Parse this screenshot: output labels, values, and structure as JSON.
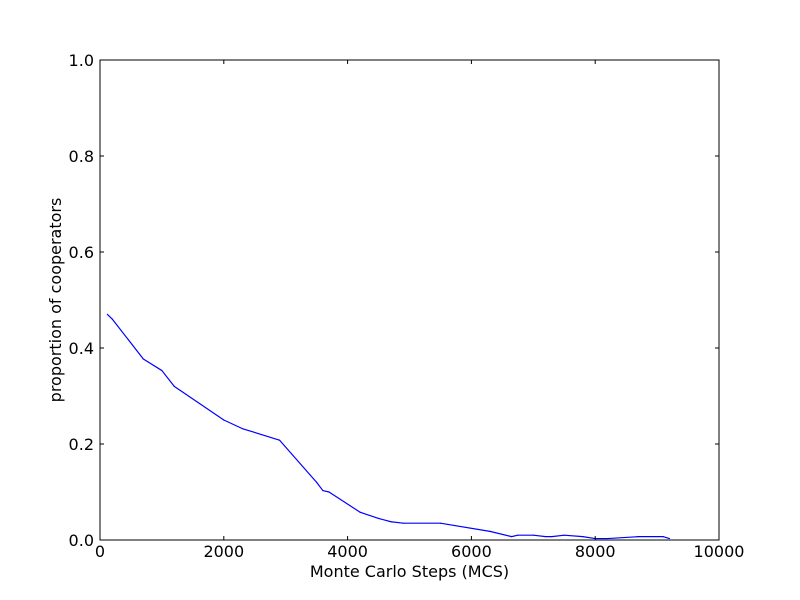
{
  "chart_data": {
    "type": "line",
    "title": "",
    "xlabel": "Monte Carlo Steps (MCS)",
    "ylabel": "proportion of cooperators",
    "xlim": [
      0,
      10000
    ],
    "ylim": [
      0.0,
      1.0
    ],
    "grid": false,
    "x_ticks": [
      0,
      2000,
      4000,
      6000,
      8000,
      10000
    ],
    "x_tick_labels": [
      "0",
      "2000",
      "4000",
      "6000",
      "8000",
      "10000"
    ],
    "y_ticks": [
      0.0,
      0.2,
      0.4,
      0.6,
      0.8,
      1.0
    ],
    "y_tick_labels": [
      "0.0",
      "0.2",
      "0.4",
      "0.6",
      "0.8",
      "1.0"
    ],
    "series": [
      {
        "color": "#0000ff",
        "x": [
          120,
          200,
          700,
          1000,
          1200,
          2000,
          2300,
          2900,
          3500,
          3600,
          3700,
          4200,
          4500,
          4700,
          4900,
          5500,
          6300,
          6650,
          6750,
          7000,
          7200,
          7300,
          7500,
          7800,
          8000,
          8200,
          8700,
          9100,
          9200
        ],
        "y": [
          0.47,
          0.46,
          0.377,
          0.353,
          0.32,
          0.25,
          0.232,
          0.208,
          0.12,
          0.103,
          0.1,
          0.058,
          0.045,
          0.038,
          0.035,
          0.035,
          0.018,
          0.007,
          0.01,
          0.01,
          0.007,
          0.007,
          0.01,
          0.007,
          0.003,
          0.003,
          0.007,
          0.007,
          0.003
        ]
      }
    ]
  }
}
